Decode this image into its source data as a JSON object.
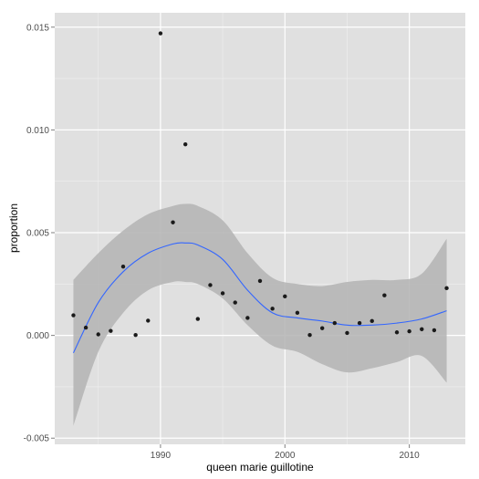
{
  "chart_data": {
    "type": "scatter",
    "xlabel": "queen marie guillotine",
    "ylabel": "proportion",
    "xlim": [
      1981.5,
      2014.5
    ],
    "ylim": [
      -0.0053,
      0.0157
    ],
    "x_ticks": [
      1990,
      2000,
      2010
    ],
    "x_tick_labels": [
      "1990",
      "2000",
      "2010"
    ],
    "y_ticks": [
      -0.005,
      0.0,
      0.005,
      0.01,
      0.015
    ],
    "y_tick_labels": [
      "-0.005",
      "0.000",
      "0.005",
      "0.010",
      "0.015"
    ],
    "grid": true,
    "colors": {
      "panel_background": "#e0e0e0",
      "grid_major": "#ffffff",
      "grid_minor": "#efefef",
      "points": "#1a1a1a",
      "smooth_line": "#3366ff",
      "confidence_band": "#b3b3b3"
    },
    "points": [
      {
        "x": 1983,
        "y": 0.00098
      },
      {
        "x": 1984,
        "y": 0.00038
      },
      {
        "x": 1985,
        "y": 5e-05
      },
      {
        "x": 1986,
        "y": 0.00022
      },
      {
        "x": 1987,
        "y": 0.00335
      },
      {
        "x": 1988,
        "y": 2e-05
      },
      {
        "x": 1989,
        "y": 0.00072
      },
      {
        "x": 1990,
        "y": 0.0147
      },
      {
        "x": 1991,
        "y": 0.0055
      },
      {
        "x": 1992,
        "y": 0.0093
      },
      {
        "x": 1993,
        "y": 0.0008
      },
      {
        "x": 1994,
        "y": 0.00245
      },
      {
        "x": 1995,
        "y": 0.00205
      },
      {
        "x": 1996,
        "y": 0.0016
      },
      {
        "x": 1997,
        "y": 0.00085
      },
      {
        "x": 1998,
        "y": 0.00265
      },
      {
        "x": 1999,
        "y": 0.0013
      },
      {
        "x": 2000,
        "y": 0.0019
      },
      {
        "x": 2001,
        "y": 0.0011
      },
      {
        "x": 2002,
        "y": 2e-05
      },
      {
        "x": 2003,
        "y": 0.00035
      },
      {
        "x": 2004,
        "y": 0.0006
      },
      {
        "x": 2005,
        "y": 0.00012
      },
      {
        "x": 2006,
        "y": 0.0006
      },
      {
        "x": 2007,
        "y": 0.0007
      },
      {
        "x": 2008,
        "y": 0.00195
      },
      {
        "x": 2009,
        "y": 0.00015
      },
      {
        "x": 2010,
        "y": 0.0002
      },
      {
        "x": 2011,
        "y": 0.0003
      },
      {
        "x": 2012,
        "y": 0.00025
      },
      {
        "x": 2013,
        "y": 0.0023
      }
    ],
    "smooth": {
      "x": [
        1983,
        1985,
        1987,
        1989,
        1991,
        1992,
        1993,
        1995,
        1997,
        1999,
        2001,
        2003,
        2005,
        2007,
        2009,
        2011,
        2013
      ],
      "y": [
        -0.00085,
        0.0016,
        0.0031,
        0.004,
        0.00445,
        0.0045,
        0.0044,
        0.0037,
        0.0022,
        0.0011,
        0.00085,
        0.0007,
        0.0005,
        0.0005,
        0.0006,
        0.0008,
        0.0012
      ],
      "lower": [
        -0.0044,
        -0.0008,
        0.0011,
        0.0022,
        0.0026,
        0.0026,
        0.0025,
        0.0018,
        0.0005,
        -0.0005,
        -0.0008,
        -0.0014,
        -0.0018,
        -0.0016,
        -0.0013,
        -0.001,
        -0.0023
      ],
      "upper": [
        0.0027,
        0.004,
        0.0051,
        0.0059,
        0.0063,
        0.0064,
        0.0063,
        0.0056,
        0.004,
        0.0028,
        0.0025,
        0.0024,
        0.0026,
        0.0027,
        0.0027,
        0.003,
        0.0047
      ]
    }
  }
}
